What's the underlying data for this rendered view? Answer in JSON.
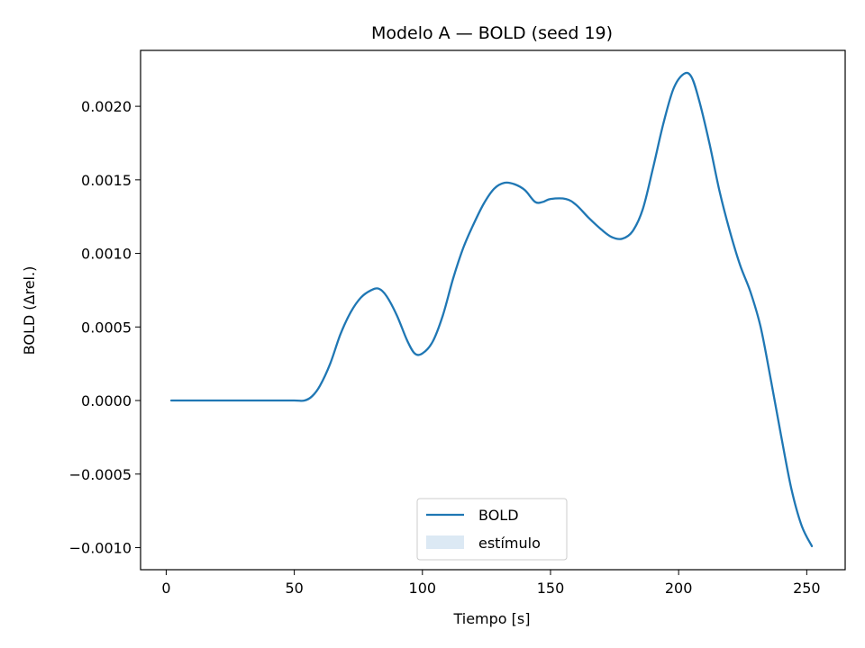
{
  "chart_data": {
    "type": "line",
    "title": "Modelo A — BOLD (seed 19)",
    "xlabel": "Tiempo [s]",
    "ylabel": "BOLD (Δrel.)",
    "xlim": [
      -10,
      265
    ],
    "ylim": [
      -0.00115,
      0.00238
    ],
    "x_ticks": [
      0,
      50,
      100,
      150,
      200,
      250
    ],
    "x_tick_labels": [
      "0",
      "50",
      "100",
      "150",
      "200",
      "250"
    ],
    "y_ticks": [
      -0.001,
      -0.0005,
      0.0,
      0.0005,
      0.001,
      0.0015,
      0.002
    ],
    "y_tick_labels": [
      "−0.0010",
      "−0.0005",
      "0.0000",
      "0.0005",
      "0.0010",
      "0.0015",
      "0.0020"
    ],
    "grid": false,
    "legend": {
      "placement": "lower-center",
      "entries": [
        {
          "label": "BOLD",
          "kind": "line",
          "color": "#1f77b4"
        },
        {
          "label": "estímulo",
          "kind": "patch",
          "color": "#dce9f4"
        }
      ]
    },
    "series": [
      {
        "name": "BOLD",
        "color": "#1f77b4",
        "points": [
          [
            2,
            0.0
          ],
          [
            10,
            0.0
          ],
          [
            20,
            0.0
          ],
          [
            30,
            0.0
          ],
          [
            40,
            0.0
          ],
          [
            50,
            0.0
          ],
          [
            54,
            0.0
          ],
          [
            57,
            3e-05
          ],
          [
            60,
            0.0001
          ],
          [
            64,
            0.00025
          ],
          [
            68,
            0.00045
          ],
          [
            72,
            0.0006
          ],
          [
            76,
            0.0007
          ],
          [
            80,
            0.00075
          ],
          [
            83,
            0.00076
          ],
          [
            86,
            0.00071
          ],
          [
            90,
            0.00058
          ],
          [
            94,
            0.00041
          ],
          [
            97,
            0.00032
          ],
          [
            100,
            0.00032
          ],
          [
            104,
            0.0004
          ],
          [
            108,
            0.00058
          ],
          [
            112,
            0.00083
          ],
          [
            116,
            0.00104
          ],
          [
            120,
            0.0012
          ],
          [
            124,
            0.00134
          ],
          [
            128,
            0.00144
          ],
          [
            132,
            0.00148
          ],
          [
            136,
            0.00147
          ],
          [
            140,
            0.00143
          ],
          [
            144,
            0.00135
          ],
          [
            147,
            0.00135
          ],
          [
            150,
            0.00137
          ],
          [
            156,
            0.00137
          ],
          [
            160,
            0.00133
          ],
          [
            165,
            0.00124
          ],
          [
            170,
            0.00116
          ],
          [
            174,
            0.00111
          ],
          [
            178,
            0.0011
          ],
          [
            182,
            0.00115
          ],
          [
            186,
            0.0013
          ],
          [
            190,
            0.00158
          ],
          [
            194,
            0.00188
          ],
          [
            198,
            0.00212
          ],
          [
            202,
            0.00222
          ],
          [
            205,
            0.0022
          ],
          [
            208,
            0.00204
          ],
          [
            212,
            0.00175
          ],
          [
            216,
            0.00142
          ],
          [
            220,
            0.00115
          ],
          [
            224,
            0.00092
          ],
          [
            228,
            0.00074
          ],
          [
            232,
            0.0005
          ],
          [
            236,
            0.00014
          ],
          [
            240,
            -0.00024
          ],
          [
            244,
            -0.0006
          ],
          [
            248,
            -0.00085
          ],
          [
            252,
            -0.00099
          ]
        ]
      }
    ]
  }
}
